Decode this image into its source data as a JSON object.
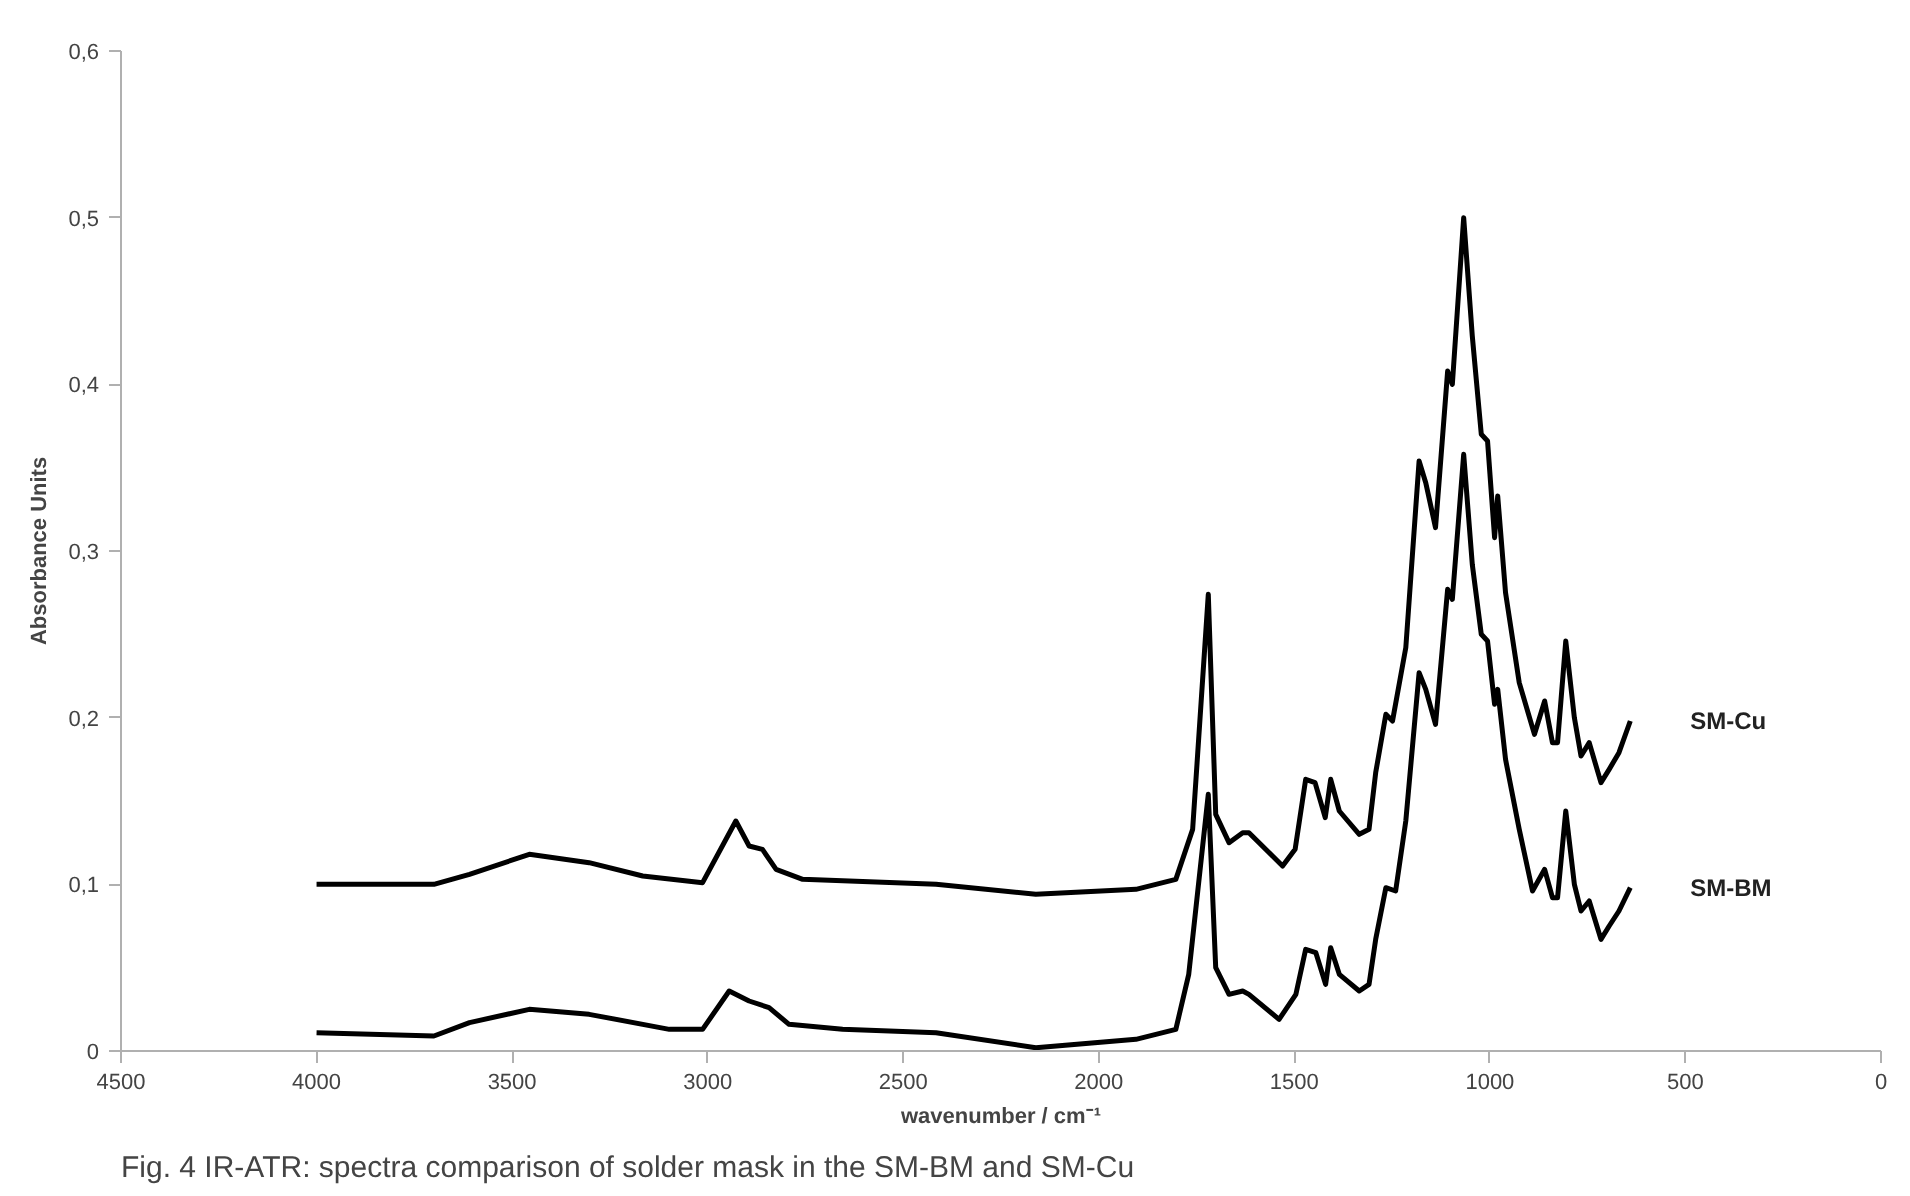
{
  "chart_data": {
    "type": "line",
    "xlabel": "wavenumber / cm⁻¹",
    "ylabel": "Absorbance Units",
    "annotations": [
      "Fig. 4  IR-ATR: spectra comparison of solder mask in the SM-BM and SM-Cu"
    ],
    "xlim": [
      4500,
      0
    ],
    "xticks": [
      4500,
      4000,
      3500,
      3000,
      2500,
      2000,
      1500,
      1000,
      500,
      0
    ],
    "ylim": [
      0,
      0.6
    ],
    "yticks": [
      0,
      {
        "value": 0.1,
        "label": "0,1"
      },
      {
        "value": 0.2,
        "label": "0,2"
      },
      {
        "value": 0.3,
        "label": "0,3"
      },
      {
        "value": 0.4,
        "label": "0,4"
      },
      {
        "value": 0.5,
        "label": "0,5"
      },
      {
        "value": 0.6,
        "label": "0,6"
      }
    ],
    "grid": false,
    "legend": false,
    "marker": "none",
    "line_style": "solid",
    "series": [
      {
        "name": "SM-Cu",
        "color": "#000000",
        "x": [
          4000,
          3700,
          3609,
          3456,
          3303,
          3166,
          3013,
          2928,
          2894,
          2860,
          2825,
          2757,
          2416,
          2161,
          1905,
          1803,
          1760,
          1720,
          1701,
          1667,
          1632,
          1616,
          1530,
          1498,
          1471,
          1447,
          1421,
          1407,
          1385,
          1334,
          1309,
          1292,
          1266,
          1249,
          1215,
          1181,
          1164,
          1139,
          1108,
          1096,
          1067,
          1045,
          1022,
          1006,
          988,
          980,
          960,
          925,
          886,
          860,
          840,
          827,
          806,
          784,
          767,
          746,
          716,
          695,
          670,
          641
        ],
        "values": [
          0.1,
          0.1,
          0.106,
          0.118,
          0.113,
          0.105,
          0.101,
          0.138,
          0.123,
          0.121,
          0.109,
          0.103,
          0.1,
          0.094,
          0.097,
          0.103,
          0.133,
          0.274,
          0.142,
          0.125,
          0.131,
          0.131,
          0.111,
          0.121,
          0.163,
          0.161,
          0.14,
          0.163,
          0.144,
          0.13,
          0.133,
          0.167,
          0.202,
          0.198,
          0.242,
          0.354,
          0.341,
          0.314,
          0.408,
          0.4,
          0.5,
          0.429,
          0.37,
          0.366,
          0.308,
          0.333,
          0.275,
          0.221,
          0.19,
          0.21,
          0.185,
          0.185,
          0.246,
          0.2,
          0.177,
          0.185,
          0.161,
          0.169,
          0.179,
          0.198
        ]
      },
      {
        "name": "SM-BM",
        "color": "#000000",
        "x": [
          4000,
          3700,
          3609,
          3456,
          3303,
          3098,
          3013,
          2945,
          2894,
          2843,
          2792,
          2655,
          2416,
          2161,
          1905,
          1803,
          1770,
          1720,
          1701,
          1667,
          1632,
          1616,
          1539,
          1496,
          1471,
          1445,
          1420,
          1407,
          1385,
          1334,
          1309,
          1292,
          1266,
          1241,
          1215,
          1181,
          1164,
          1139,
          1108,
          1096,
          1067,
          1045,
          1022,
          1006,
          988,
          980,
          960,
          925,
          891,
          860,
          840,
          827,
          806,
          784,
          767,
          746,
          716,
          695,
          670,
          641
        ],
        "values": [
          0.011,
          0.009,
          0.017,
          0.025,
          0.022,
          0.013,
          0.013,
          0.036,
          0.03,
          0.026,
          0.016,
          0.013,
          0.011,
          0.002,
          0.007,
          0.013,
          0.046,
          0.154,
          0.05,
          0.034,
          0.036,
          0.034,
          0.019,
          0.034,
          0.061,
          0.059,
          0.04,
          0.062,
          0.046,
          0.036,
          0.04,
          0.067,
          0.098,
          0.096,
          0.138,
          0.227,
          0.217,
          0.196,
          0.277,
          0.271,
          0.358,
          0.292,
          0.25,
          0.246,
          0.208,
          0.217,
          0.175,
          0.133,
          0.096,
          0.109,
          0.092,
          0.092,
          0.144,
          0.1,
          0.084,
          0.09,
          0.067,
          0.075,
          0.084,
          0.098
        ]
      }
    ]
  }
}
